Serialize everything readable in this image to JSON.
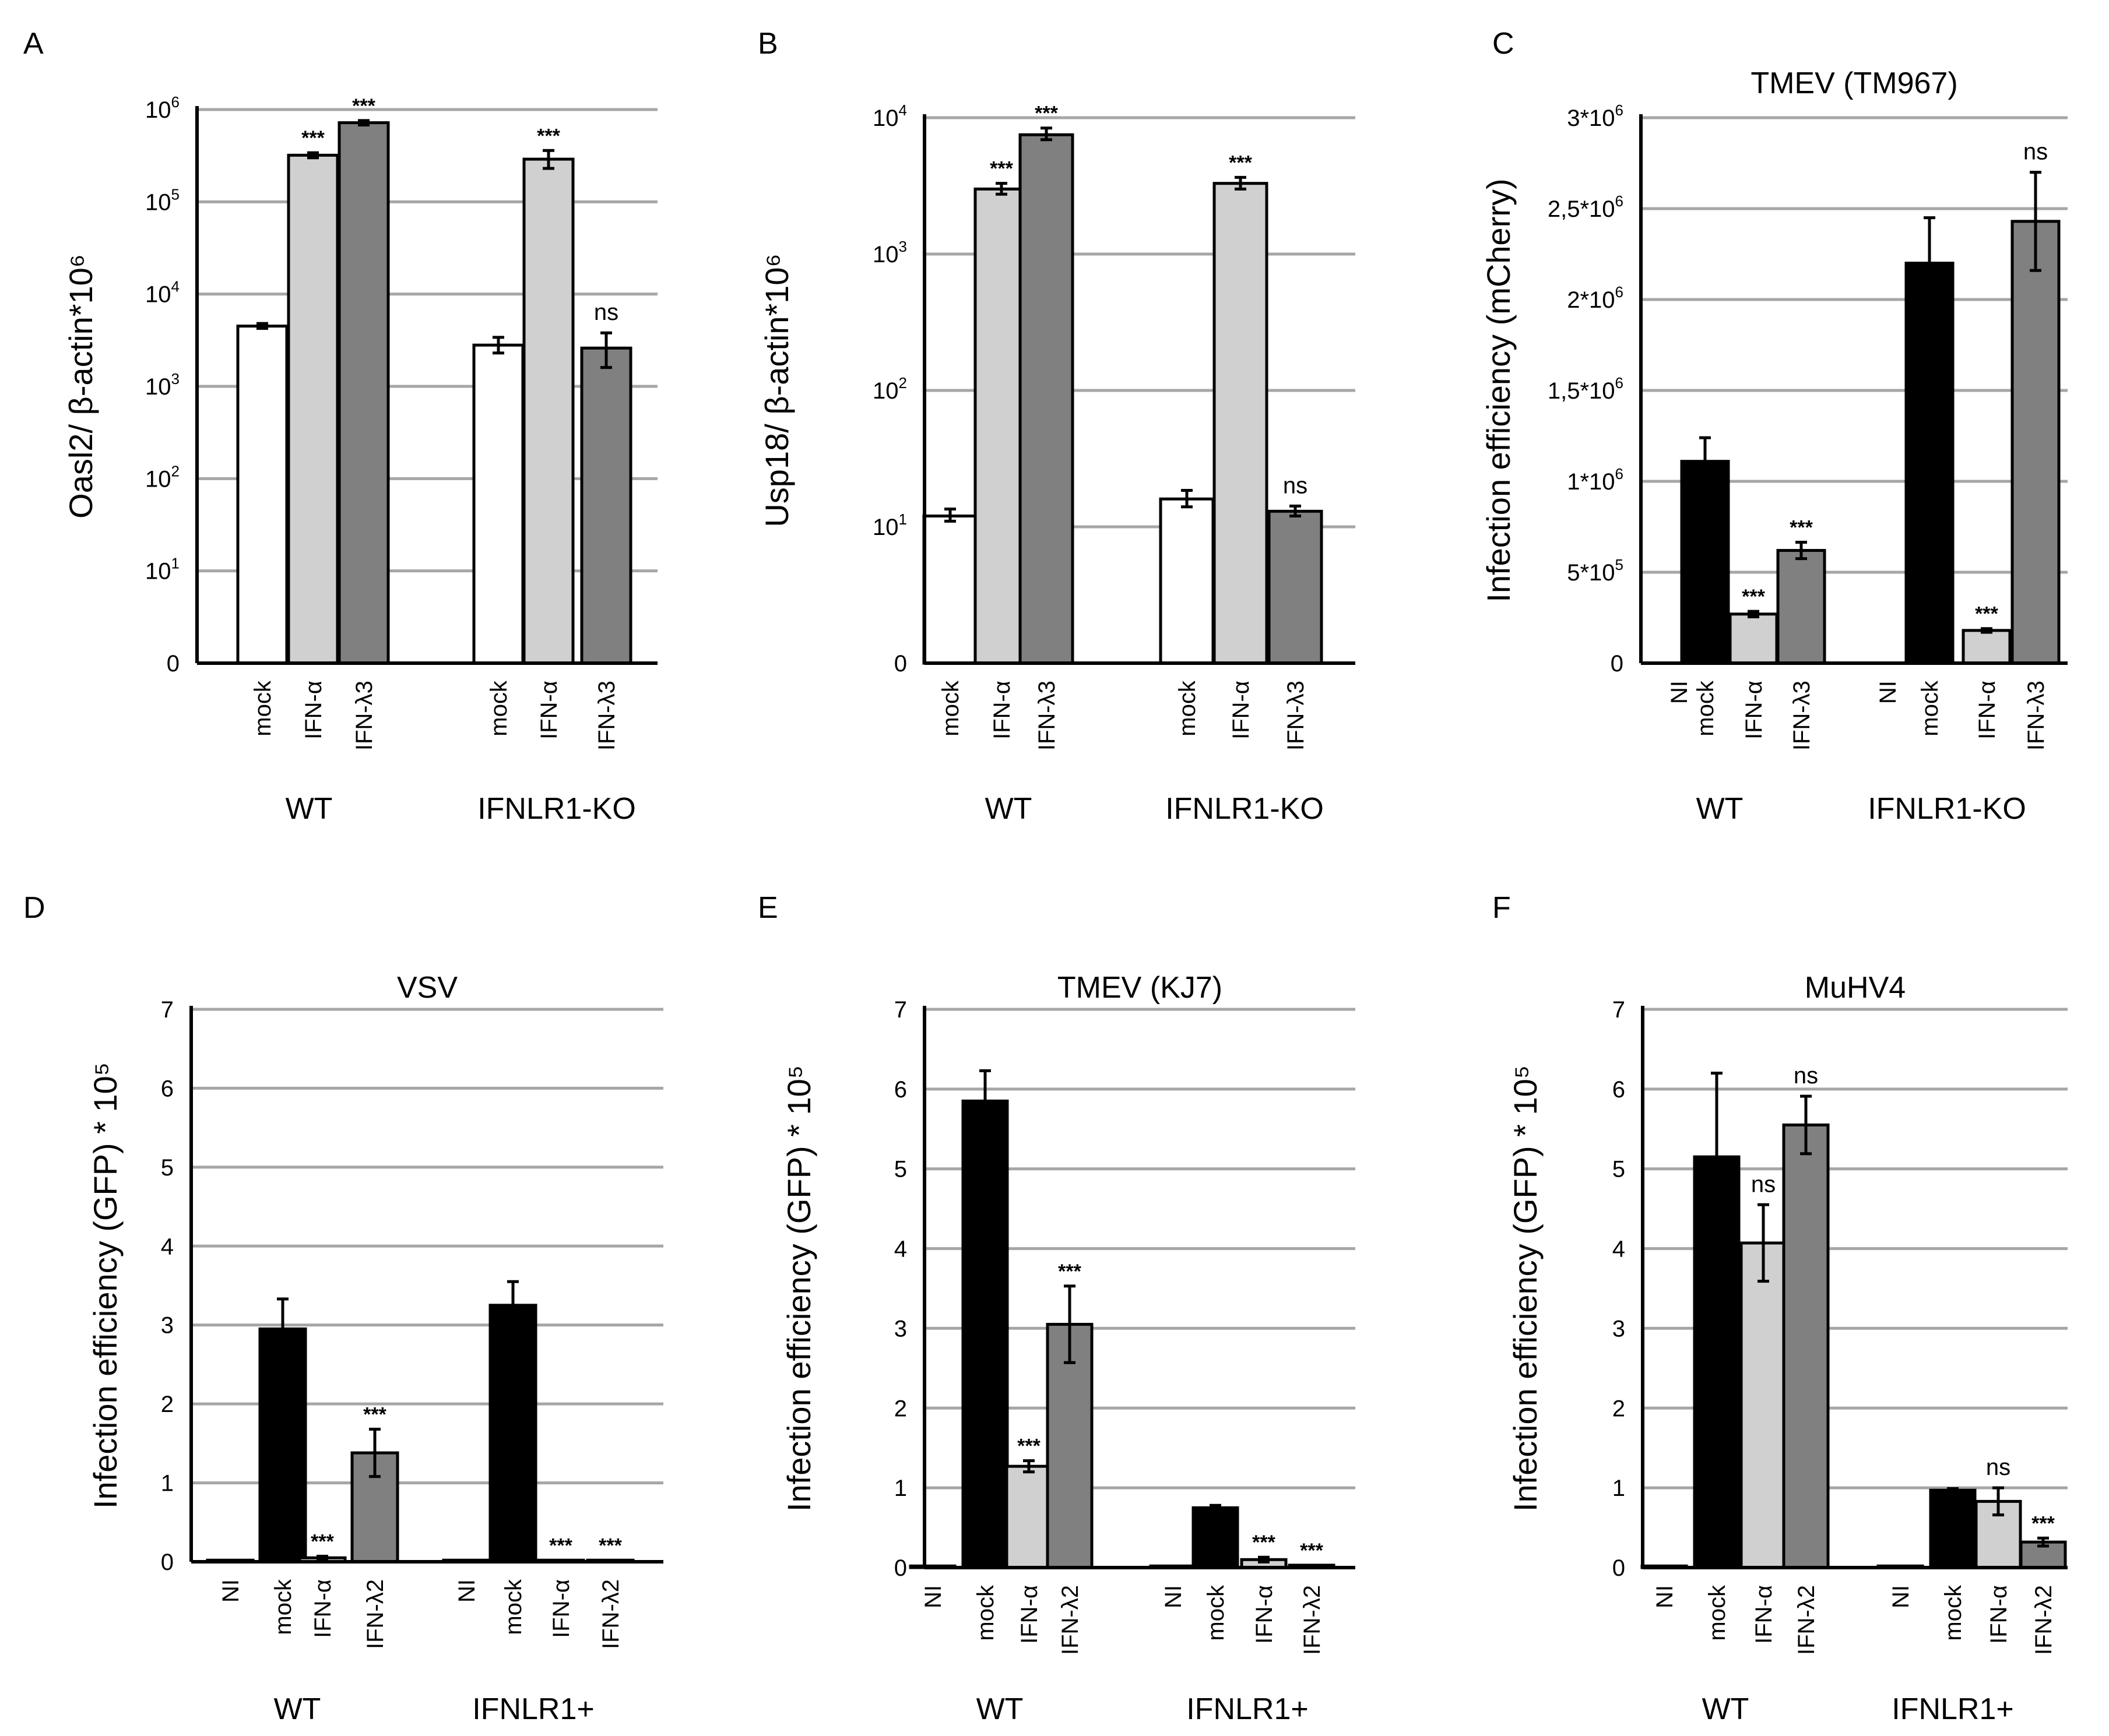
{
  "chart_data": [
    {
      "panel": "A",
      "type": "bar",
      "scale": "log",
      "title": "",
      "ylabel": "Oasl2/ β-actin*10⁶",
      "yticks": [
        {
          "base": "0",
          "exp": ""
        },
        {
          "base": "10",
          "exp": "1"
        },
        {
          "base": "10",
          "exp": "2"
        },
        {
          "base": "10",
          "exp": "3"
        },
        {
          "base": "10",
          "exp": "4"
        },
        {
          "base": "10",
          "exp": "5"
        },
        {
          "base": "10",
          "exp": "6"
        }
      ],
      "groups": [
        {
          "name": "WT",
          "bars": [
            {
              "category": "mock",
              "value": 4500,
              "err_low": 4250,
              "err_high": 4800,
              "fill": "#ffffff"
            },
            {
              "category": "IFN-α",
              "value": 320000,
              "err_low": 300000,
              "err_high": 340000,
              "fill": "#d0d0d0",
              "annotation": "***"
            },
            {
              "category": "IFN-λ3",
              "value": 720000,
              "err_low": 680000,
              "err_high": 760000,
              "fill": "#808080",
              "annotation": "***"
            }
          ]
        },
        {
          "name": "IFNLR1-KO",
          "bars": [
            {
              "category": "mock",
              "value": 2800,
              "err_low": 2300,
              "err_high": 3400,
              "fill": "#ffffff"
            },
            {
              "category": "IFN-α",
              "value": 290000,
              "err_low": 230000,
              "err_high": 360000,
              "fill": "#d0d0d0",
              "annotation": "***"
            },
            {
              "category": "IFN-λ3",
              "value": 2600,
              "err_low": 1600,
              "err_high": 3800,
              "fill": "#808080",
              "annotation": "ns"
            }
          ]
        }
      ]
    },
    {
      "panel": "B",
      "type": "bar",
      "scale": "log",
      "title": "",
      "ylabel": "Usp18/ β-actin*10⁶",
      "yticks": [
        {
          "base": "0",
          "exp": ""
        },
        {
          "base": "10",
          "exp": "1"
        },
        {
          "base": "10",
          "exp": "2"
        },
        {
          "base": "10",
          "exp": "3"
        },
        {
          "base": "10",
          "exp": "4"
        }
      ],
      "groups": [
        {
          "name": "WT",
          "bars": [
            {
              "category": "mock",
              "value": 12,
              "err_low": 11,
              "err_high": 13.5,
              "fill": "#ffffff"
            },
            {
              "category": "IFN-α",
              "value": 3000,
              "err_low": 2750,
              "err_high": 3300,
              "fill": "#d0d0d0",
              "annotation": "***"
            },
            {
              "category": "IFN-λ3",
              "value": 7500,
              "err_low": 6900,
              "err_high": 8400,
              "fill": "#808080",
              "annotation": "***"
            }
          ]
        },
        {
          "name": "IFNLR1-KO",
          "bars": [
            {
              "category": "mock",
              "value": 16,
              "err_low": 14,
              "err_high": 18.5,
              "fill": "#ffffff"
            },
            {
              "category": "IFN-α",
              "value": 3300,
              "err_low": 3000,
              "err_high": 3650,
              "fill": "#d0d0d0",
              "annotation": "***"
            },
            {
              "category": "IFN-λ3",
              "value": 13,
              "err_low": 12,
              "err_high": 14.2,
              "fill": "#808080",
              "annotation": "ns"
            }
          ]
        }
      ]
    },
    {
      "panel": "C",
      "type": "bar",
      "scale": "linear",
      "title": "TMEV (TM967)",
      "ylabel": "Infection efficiency (mCherry)",
      "ylim": [
        0,
        3000000
      ],
      "yticks": [
        {
          "value": 0,
          "base": "0",
          "exp": ""
        },
        {
          "value": 500000,
          "base": "5*10",
          "exp": "5"
        },
        {
          "value": 1000000,
          "base": "1*10",
          "exp": "6"
        },
        {
          "value": 1500000,
          "base": "1,5*10",
          "exp": "6"
        },
        {
          "value": 2000000,
          "base": "2*10",
          "exp": "6"
        },
        {
          "value": 2500000,
          "base": "2,5*10",
          "exp": "6"
        },
        {
          "value": 3000000,
          "base": "3*10",
          "exp": "6"
        }
      ],
      "groups": [
        {
          "name": "WT",
          "bars": [
            {
              "category": "NI",
              "value": 0,
              "err": 0,
              "fill": "#000000"
            },
            {
              "category": "mock",
              "value": 1110000,
              "err": 130000,
              "fill": "#000000"
            },
            {
              "category": "IFN-α",
              "value": 270000,
              "err": 15000,
              "fill": "#d0d0d0",
              "annotation": "***"
            },
            {
              "category": "IFN-λ3",
              "value": 620000,
              "err": 45000,
              "fill": "#808080",
              "annotation": "***"
            }
          ]
        },
        {
          "name": "IFNLR1-KO",
          "bars": [
            {
              "category": "NI",
              "value": 0,
              "err": 0,
              "fill": "#000000"
            },
            {
              "category": "mock",
              "value": 2200000,
              "err": 250000,
              "fill": "#000000"
            },
            {
              "category": "IFN-α",
              "value": 180000,
              "err": 10000,
              "fill": "#d0d0d0",
              "annotation": "***"
            },
            {
              "category": "IFN-λ3",
              "value": 2430000,
              "err": 270000,
              "fill": "#808080",
              "annotation": "ns"
            }
          ]
        }
      ]
    },
    {
      "panel": "D",
      "type": "bar",
      "scale": "linear",
      "title": "VSV",
      "ylabel": "Infection efficiency (GFP) * 10⁵",
      "ylim": [
        0,
        7
      ],
      "yticks": [
        {
          "value": 0,
          "base": "0",
          "exp": ""
        },
        {
          "value": 1,
          "base": "1",
          "exp": ""
        },
        {
          "value": 2,
          "base": "2",
          "exp": ""
        },
        {
          "value": 3,
          "base": "3",
          "exp": ""
        },
        {
          "value": 4,
          "base": "4",
          "exp": ""
        },
        {
          "value": 5,
          "base": "5",
          "exp": ""
        },
        {
          "value": 6,
          "base": "6",
          "exp": ""
        },
        {
          "value": 7,
          "base": "7",
          "exp": ""
        }
      ],
      "groups": [
        {
          "name": "WT",
          "bars": [
            {
              "category": "NI",
              "value": 0.02,
              "err": 0,
              "fill": "#000000"
            },
            {
              "category": "mock",
              "value": 2.95,
              "err": 0.38,
              "fill": "#000000"
            },
            {
              "category": "IFN-α",
              "value": 0.05,
              "err": 0.02,
              "fill": "#d0d0d0",
              "annotation": "***"
            },
            {
              "category": "IFN-λ2",
              "value": 1.38,
              "err": 0.3,
              "fill": "#808080",
              "annotation": "***"
            }
          ]
        },
        {
          "name": "IFNLR1+",
          "bars": [
            {
              "category": "NI",
              "value": 0.02,
              "err": 0,
              "fill": "#000000"
            },
            {
              "category": "mock",
              "value": 3.25,
              "err": 0.3,
              "fill": "#000000"
            },
            {
              "category": "IFN-α",
              "value": 0.02,
              "err": 0,
              "fill": "#d0d0d0",
              "annotation": "***"
            },
            {
              "category": "IFN-λ2",
              "value": 0.02,
              "err": 0,
              "fill": "#808080",
              "annotation": "***"
            }
          ]
        }
      ]
    },
    {
      "panel": "E",
      "type": "bar",
      "scale": "linear",
      "title": "TMEV (KJ7)",
      "ylabel": "Infection efficiency (GFP) * 10⁵",
      "ylim": [
        0,
        7
      ],
      "yticks": [
        {
          "value": 0,
          "base": "0",
          "exp": ""
        },
        {
          "value": 1,
          "base": "1",
          "exp": ""
        },
        {
          "value": 2,
          "base": "2",
          "exp": ""
        },
        {
          "value": 3,
          "base": "3",
          "exp": ""
        },
        {
          "value": 4,
          "base": "4",
          "exp": ""
        },
        {
          "value": 5,
          "base": "5",
          "exp": ""
        },
        {
          "value": 6,
          "base": "6",
          "exp": ""
        },
        {
          "value": 7,
          "base": "7",
          "exp": ""
        }
      ],
      "groups": [
        {
          "name": "WT",
          "bars": [
            {
              "category": "NI",
              "value": 0.02,
              "err": 0,
              "fill": "#000000"
            },
            {
              "category": "mock",
              "value": 5.85,
              "err": 0.38,
              "fill": "#000000"
            },
            {
              "category": "IFN-α",
              "value": 1.27,
              "err": 0.07,
              "fill": "#d0d0d0",
              "annotation": "***"
            },
            {
              "category": "IFN-λ2",
              "value": 3.05,
              "err": 0.48,
              "fill": "#808080",
              "annotation": "***"
            }
          ]
        },
        {
          "name": "IFNLR1+",
          "bars": [
            {
              "category": "NI",
              "value": 0.02,
              "err": 0,
              "fill": "#000000"
            },
            {
              "category": "mock",
              "value": 0.75,
              "err": 0.03,
              "fill": "#000000"
            },
            {
              "category": "IFN-α",
              "value": 0.1,
              "err": 0.03,
              "fill": "#d0d0d0",
              "annotation": "***"
            },
            {
              "category": "IFN-λ2",
              "value": 0.03,
              "err": 0,
              "fill": "#808080",
              "annotation": "***"
            }
          ]
        }
      ]
    },
    {
      "panel": "F",
      "type": "bar",
      "scale": "linear",
      "title": "MuHV4",
      "ylabel": "Infection efficiency (GFP) * 10⁵",
      "ylim": [
        0,
        7
      ],
      "yticks": [
        {
          "value": 0,
          "base": "0",
          "exp": ""
        },
        {
          "value": 1,
          "base": "1",
          "exp": ""
        },
        {
          "value": 2,
          "base": "2",
          "exp": ""
        },
        {
          "value": 3,
          "base": "3",
          "exp": ""
        },
        {
          "value": 4,
          "base": "4",
          "exp": ""
        },
        {
          "value": 5,
          "base": "5",
          "exp": ""
        },
        {
          "value": 6,
          "base": "6",
          "exp": ""
        },
        {
          "value": 7,
          "base": "7",
          "exp": ""
        }
      ],
      "groups": [
        {
          "name": "WT",
          "bars": [
            {
              "category": "NI",
              "value": 0.02,
              "err": 0,
              "fill": "#000000"
            },
            {
              "category": "mock",
              "value": 5.15,
              "err": 1.05,
              "fill": "#000000"
            },
            {
              "category": "IFN-α",
              "value": 4.07,
              "err": 0.48,
              "fill": "#d0d0d0",
              "annotation": "ns"
            },
            {
              "category": "IFN-λ2",
              "value": 5.55,
              "err": 0.36,
              "fill": "#808080",
              "annotation": "ns"
            }
          ]
        },
        {
          "name": "IFNLR1+",
          "bars": [
            {
              "category": "NI",
              "value": 0.02,
              "err": 0,
              "fill": "#000000"
            },
            {
              "category": "mock",
              "value": 0.97,
              "err": 0.02,
              "fill": "#000000"
            },
            {
              "category": "IFN-α",
              "value": 0.83,
              "err": 0.17,
              "fill": "#d0d0d0",
              "annotation": "ns"
            },
            {
              "category": "IFN-λ2",
              "value": 0.32,
              "err": 0.05,
              "fill": "#808080",
              "annotation": "***"
            }
          ]
        }
      ]
    }
  ]
}
